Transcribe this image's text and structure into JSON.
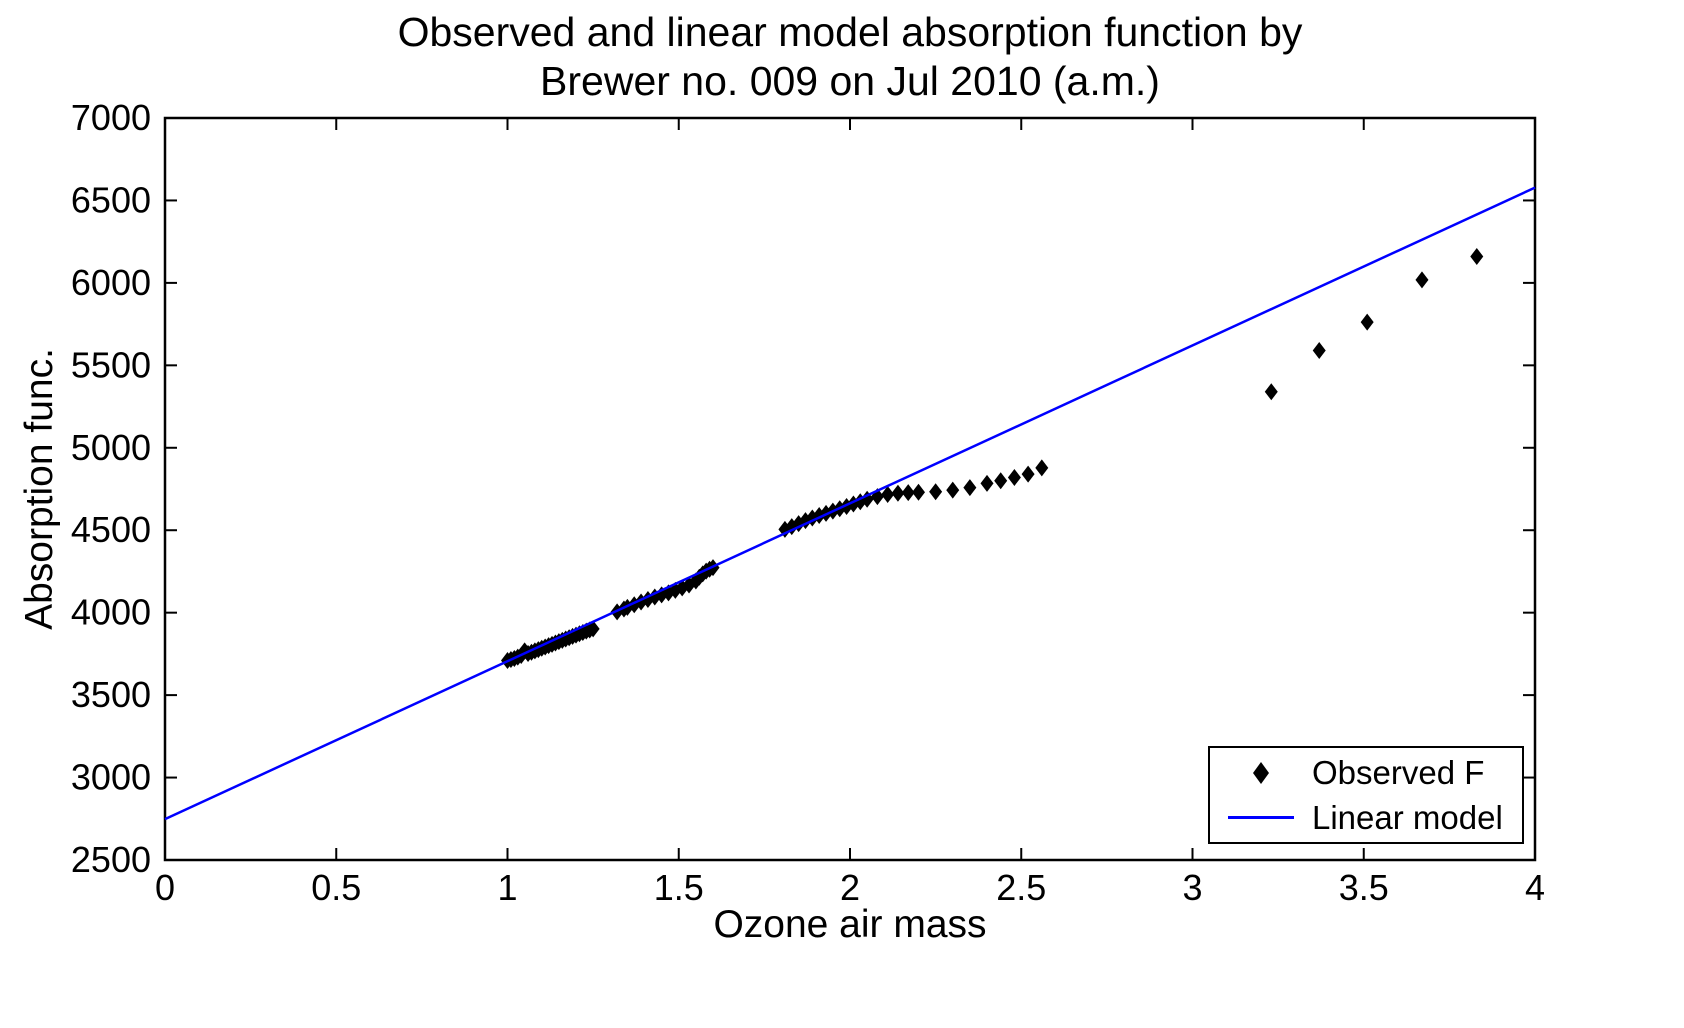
{
  "title": {
    "line1": "Observed and linear model absorption function by",
    "line2": "Brewer no. 009 on Jul 2010  (a.m.)"
  },
  "chart_data": {
    "type": "scatter",
    "title": "Observed and linear model absorption function by Brewer no. 009 on Jul 2010 (a.m.)",
    "xlabel": "Ozone air mass",
    "ylabel": "Absorption func.",
    "xlim": [
      0,
      4
    ],
    "ylim": [
      2500,
      7000
    ],
    "xticks": [
      0,
      0.5,
      1,
      1.5,
      2,
      2.5,
      3,
      3.5,
      4
    ],
    "xtick_labels": [
      "0",
      "0.5",
      "1",
      "1.5",
      "2",
      "2.5",
      "3",
      "3.5",
      "4"
    ],
    "yticks": [
      2500,
      3000,
      3500,
      4000,
      4500,
      5000,
      5500,
      6000,
      6500,
      7000
    ],
    "ytick_labels": [
      "2500",
      "3000",
      "3500",
      "4000",
      "4500",
      "5000",
      "5500",
      "6000",
      "6500",
      "7000"
    ],
    "grid": false,
    "legend_position": "lower right",
    "colors": {
      "line": "#0000ff",
      "marker": "#000000"
    },
    "series": [
      {
        "name": "Observed F",
        "type": "scatter",
        "marker": "diamond",
        "points": [
          [
            1.0,
            3710
          ],
          [
            1.01,
            3716
          ],
          [
            1.02,
            3722
          ],
          [
            1.03,
            3730
          ],
          [
            1.04,
            3740
          ],
          [
            1.05,
            3768
          ],
          [
            1.06,
            3752
          ],
          [
            1.07,
            3760
          ],
          [
            1.08,
            3768
          ],
          [
            1.09,
            3776
          ],
          [
            1.1,
            3784
          ],
          [
            1.11,
            3792
          ],
          [
            1.12,
            3800
          ],
          [
            1.13,
            3808
          ],
          [
            1.14,
            3816
          ],
          [
            1.15,
            3824
          ],
          [
            1.16,
            3832
          ],
          [
            1.17,
            3840
          ],
          [
            1.18,
            3848
          ],
          [
            1.19,
            3856
          ],
          [
            1.2,
            3864
          ],
          [
            1.21,
            3872
          ],
          [
            1.22,
            3880
          ],
          [
            1.23,
            3888
          ],
          [
            1.24,
            3895
          ],
          [
            1.25,
            3902
          ],
          [
            1.32,
            4005
          ],
          [
            1.34,
            4022
          ],
          [
            1.35,
            4032
          ],
          [
            1.37,
            4048
          ],
          [
            1.39,
            4065
          ],
          [
            1.41,
            4080
          ],
          [
            1.43,
            4095
          ],
          [
            1.45,
            4108
          ],
          [
            1.47,
            4120
          ],
          [
            1.49,
            4135
          ],
          [
            1.51,
            4150
          ],
          [
            1.53,
            4168
          ],
          [
            1.55,
            4192
          ],
          [
            1.56,
            4215
          ],
          [
            1.57,
            4235
          ],
          [
            1.58,
            4252
          ],
          [
            1.59,
            4263
          ],
          [
            1.6,
            4273
          ],
          [
            1.81,
            4505
          ],
          [
            1.83,
            4522
          ],
          [
            1.85,
            4540
          ],
          [
            1.87,
            4558
          ],
          [
            1.89,
            4574
          ],
          [
            1.91,
            4589
          ],
          [
            1.93,
            4602
          ],
          [
            1.95,
            4616
          ],
          [
            1.97,
            4630
          ],
          [
            1.99,
            4644
          ],
          [
            2.01,
            4659
          ],
          [
            2.03,
            4673
          ],
          [
            2.05,
            4688
          ],
          [
            2.08,
            4704
          ],
          [
            2.11,
            4717
          ],
          [
            2.14,
            4724
          ],
          [
            2.17,
            4728
          ],
          [
            2.2,
            4730
          ],
          [
            2.25,
            4733
          ],
          [
            2.3,
            4743
          ],
          [
            2.35,
            4758
          ],
          [
            2.4,
            4784
          ],
          [
            2.44,
            4800
          ],
          [
            2.48,
            4820
          ],
          [
            2.52,
            4840
          ],
          [
            2.56,
            4878
          ],
          [
            3.23,
            5340
          ],
          [
            3.37,
            5590
          ],
          [
            3.51,
            5762
          ],
          [
            3.67,
            6018
          ],
          [
            3.83,
            6160
          ]
        ]
      },
      {
        "name": "Linear model",
        "type": "line",
        "points": [
          [
            0,
            2748
          ],
          [
            4,
            6578
          ]
        ]
      }
    ]
  }
}
